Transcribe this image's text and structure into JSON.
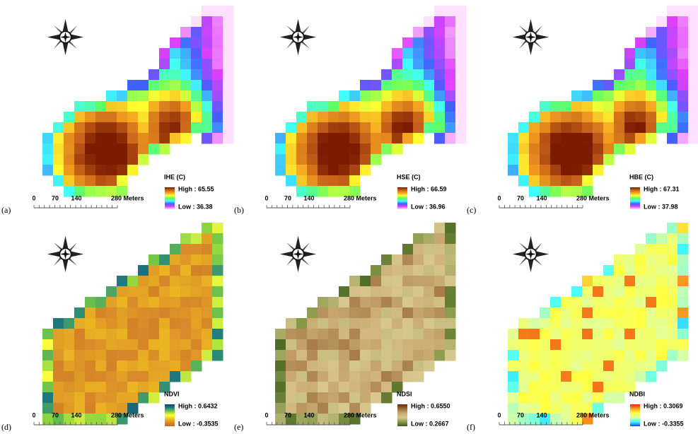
{
  "panels": [
    {
      "label": "(a)",
      "legend_title": "IHE (C)",
      "high": "High : 65.55",
      "low": "Low : 36.38",
      "scale": [
        "0",
        "70",
        "140",
        "280 Meters"
      ]
    },
    {
      "label": "(b)",
      "legend_title": "HSE (C)",
      "high": "High : 66.59",
      "low": "Low : 36.96",
      "scale": [
        "0",
        "70",
        "140",
        "280 Meters"
      ]
    },
    {
      "label": "(c)",
      "legend_title": "HBE (C)",
      "high": "High : 67.31",
      "low": "Low : 37.98",
      "scale": [
        "0",
        "70",
        "140",
        "280 Meters"
      ]
    },
    {
      "label": "(d)",
      "legend_title": "NDVI",
      "high": "High : 0.6432",
      "low": "Low : -0.3535",
      "scale": [
        "0",
        "70",
        "140",
        "280 Meters"
      ]
    },
    {
      "label": "(e)",
      "legend_title": "NDSI",
      "high": "High : 0.6550",
      "low": "Low : 0.2667",
      "scale": [
        "0",
        "70",
        "140",
        "280 Meters"
      ]
    },
    {
      "label": "(f)",
      "legend_title": "NDBI",
      "high": "High : 0.3069",
      "low": "Low : -0.3355",
      "scale": [
        "0",
        "70",
        "140",
        "280 Meters"
      ]
    }
  ]
}
